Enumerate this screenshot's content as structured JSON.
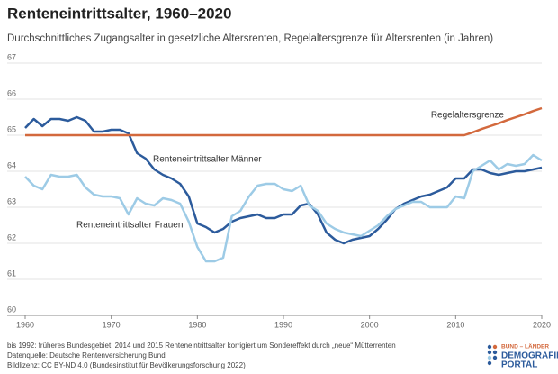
{
  "chart_data": {
    "type": "line",
    "title": "Renteneintrittsalter, 1960–2020",
    "subtitle": "Durchschnittliches Zugangsalter in gesetzliche Altersrenten, Regelaltersgrenze für Altersrenten (in Jahren)",
    "x": [
      1960,
      1961,
      1962,
      1963,
      1964,
      1965,
      1966,
      1967,
      1968,
      1969,
      1970,
      1971,
      1972,
      1973,
      1974,
      1975,
      1976,
      1977,
      1978,
      1979,
      1980,
      1981,
      1982,
      1983,
      1984,
      1985,
      1986,
      1987,
      1988,
      1989,
      1990,
      1991,
      1992,
      1993,
      1994,
      1995,
      1996,
      1997,
      1998,
      1999,
      2000,
      2001,
      2002,
      2003,
      2004,
      2005,
      2006,
      2007,
      2008,
      2009,
      2010,
      2011,
      2012,
      2013,
      2014,
      2015,
      2016,
      2017,
      2018,
      2019,
      2020
    ],
    "series": [
      {
        "name": "Renteneintrittsalter Männer",
        "color": "#2c5b9c",
        "values": [
          65.2,
          65.45,
          65.25,
          65.45,
          65.45,
          65.4,
          65.5,
          65.4,
          65.1,
          65.1,
          65.15,
          65.15,
          65.05,
          64.5,
          64.35,
          64.05,
          63.9,
          63.8,
          63.65,
          63.3,
          62.55,
          62.45,
          62.3,
          62.4,
          62.6,
          62.7,
          62.75,
          62.8,
          62.7,
          62.7,
          62.8,
          62.8,
          63.05,
          63.1,
          62.8,
          62.3,
          62.1,
          62.0,
          62.1,
          62.15,
          62.2,
          62.4,
          62.65,
          62.95,
          63.1,
          63.2,
          63.3,
          63.35,
          63.45,
          63.55,
          63.8,
          63.8,
          64.05,
          64.05,
          63.95,
          63.9,
          63.95,
          64.0,
          64.0,
          64.05,
          64.1
        ]
      },
      {
        "name": "Renteneintrittsalter Frauen",
        "color": "#9dcbe6",
        "values": [
          63.85,
          63.6,
          63.5,
          63.9,
          63.85,
          63.85,
          63.9,
          63.55,
          63.35,
          63.3,
          63.3,
          63.25,
          62.8,
          63.25,
          63.1,
          63.05,
          63.25,
          63.2,
          63.1,
          62.6,
          61.9,
          61.5,
          61.5,
          61.6,
          62.75,
          62.9,
          63.3,
          63.6,
          63.65,
          63.65,
          63.5,
          63.45,
          63.6,
          63.05,
          62.9,
          62.55,
          62.4,
          62.3,
          62.25,
          62.2,
          62.35,
          62.5,
          62.75,
          62.95,
          63.05,
          63.15,
          63.15,
          63.0,
          63.0,
          63.0,
          63.3,
          63.25,
          64.0,
          64.15,
          64.3,
          64.05,
          64.2,
          64.15,
          64.2,
          64.45,
          64.3
        ]
      },
      {
        "name": "Regelaltersgrenze",
        "color": "#d3693d",
        "values": [
          65,
          65,
          65,
          65,
          65,
          65,
          65,
          65,
          65,
          65,
          65,
          65,
          65,
          65,
          65,
          65,
          65,
          65,
          65,
          65,
          65,
          65,
          65,
          65,
          65,
          65,
          65,
          65,
          65,
          65,
          65,
          65,
          65,
          65,
          65,
          65,
          65,
          65,
          65,
          65,
          65,
          65,
          65,
          65,
          65,
          65,
          65,
          65,
          65,
          65,
          65,
          65,
          65.08,
          65.17,
          65.25,
          65.33,
          65.42,
          65.5,
          65.58,
          65.67,
          65.75
        ]
      }
    ],
    "xlim": [
      1960,
      2020
    ],
    "xticks": [
      1960,
      1970,
      1980,
      1990,
      2000,
      2010,
      2020
    ],
    "ylim": [
      60,
      67
    ],
    "yticks": [
      60,
      61,
      62,
      63,
      64,
      65,
      66,
      67
    ],
    "grid": true,
    "notes": [
      "bis 1992: früheres Bundesgebiet. 2014 und 2015 Renteneintrittsalter korrigiert um Sondereffekt durch „neue“ Mütterrenten",
      "Datenquelle: Deutsche Rentenversicherung Bund",
      "Bildlizenz: CC BY-ND 4.0 (Bundesinstitut für Bevölkerungsforschung 2022)"
    ],
    "logo": [
      "BUND – LÄNDER",
      "DEMOGRAFIE",
      "PORTAL"
    ]
  }
}
